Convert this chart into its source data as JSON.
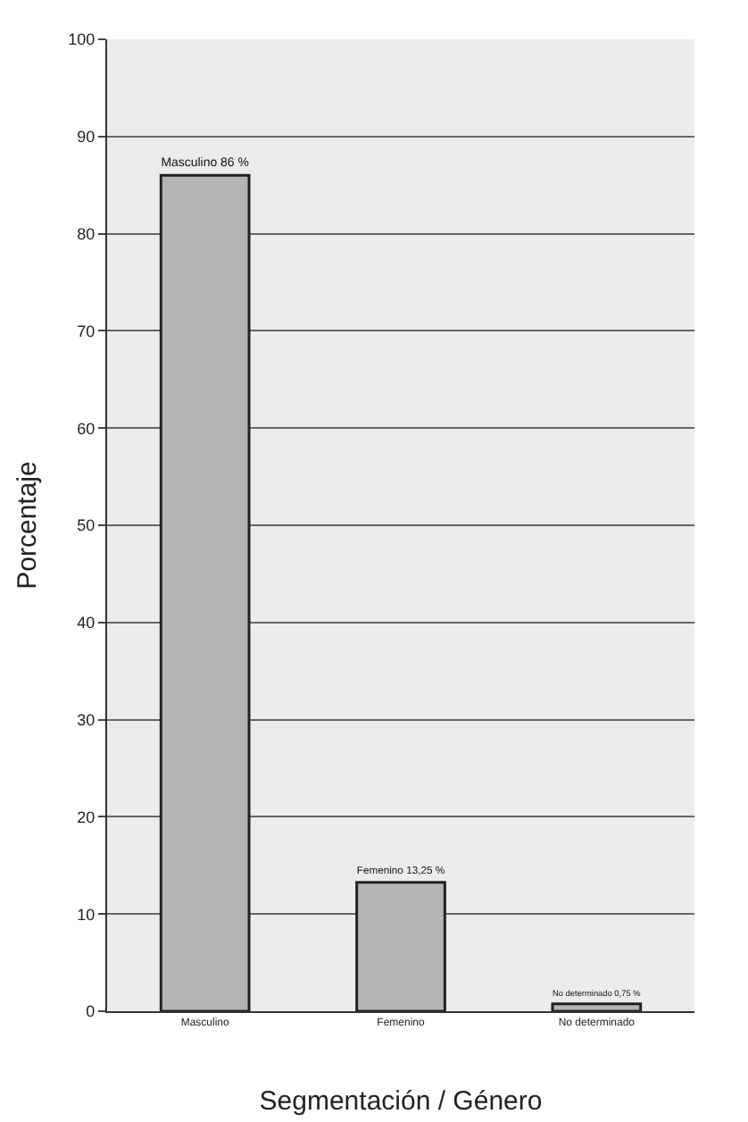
{
  "chart_data": {
    "type": "bar",
    "xlabel": "Segmentación / Género",
    "ylabel": "Porcentaje",
    "categories": [
      "Masculino",
      "Femenino",
      "No determinado"
    ],
    "values": [
      86,
      13.25,
      0.75
    ],
    "value_labels": [
      "Masculino 86 %",
      "Femenino 13,25 %",
      "No determinado 0,75 %"
    ],
    "color": "#b4b4b4",
    "ylim": [
      0,
      100
    ],
    "yticks": [
      0,
      10,
      20,
      30,
      40,
      50,
      60,
      70,
      80,
      90,
      100
    ],
    "grid": "y"
  }
}
